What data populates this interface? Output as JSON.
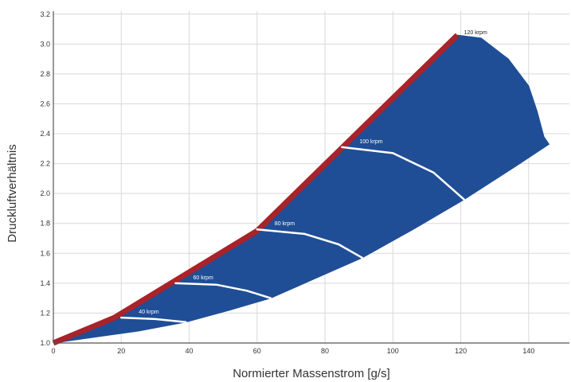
{
  "chart_data": {
    "type": "area",
    "title": "",
    "xlabel": "Normierter Massenstrom [g/s]",
    "ylabel": "Druckluftverhältnis",
    "xlim": [
      0,
      152
    ],
    "ylim": [
      1.0,
      3.22
    ],
    "x_ticks": [
      0,
      20,
      40,
      60,
      80,
      100,
      120,
      140
    ],
    "y_ticks": [
      1.0,
      1.2,
      1.4,
      1.6,
      1.8,
      2.0,
      2.2,
      2.4,
      2.6,
      2.8,
      3.0,
      3.2
    ],
    "x_tick_labels": [
      "0",
      "20",
      "40",
      "60",
      "80",
      "100",
      "120",
      "140"
    ],
    "y_tick_labels": [
      "1.0",
      "1.2",
      "1.4",
      "1.6",
      "1.8",
      "2.0",
      "2.2",
      "2.4",
      "2.6",
      "2.8",
      "3.0",
      "3.2"
    ],
    "grid": true,
    "map_region": {
      "color": "#1f4e96",
      "surge_line": [
        [
          0,
          1.0
        ],
        [
          18,
          1.17
        ],
        [
          60,
          1.75
        ],
        [
          119,
          3.06
        ]
      ],
      "choke_side": [
        [
          119,
          3.06
        ],
        [
          126,
          3.04
        ],
        [
          134,
          2.9
        ],
        [
          140,
          2.72
        ],
        [
          142.5,
          2.55
        ],
        [
          144.5,
          2.38
        ],
        [
          146,
          2.33
        ]
      ],
      "lower_boundary": [
        [
          146,
          2.33
        ],
        [
          136,
          2.18
        ],
        [
          121,
          1.96
        ],
        [
          106,
          1.76
        ],
        [
          91,
          1.57
        ],
        [
          76,
          1.42
        ],
        [
          64,
          1.3
        ],
        [
          52,
          1.22
        ],
        [
          39,
          1.14
        ],
        [
          25,
          1.08
        ],
        [
          0,
          1.0
        ]
      ]
    },
    "surge_line_color": "#a8232a",
    "speed_lines": [
      {
        "label": "40 krpm",
        "points": [
          [
            20,
            1.17
          ],
          [
            30,
            1.16
          ],
          [
            39,
            1.14
          ]
        ]
      },
      {
        "label": "60 krpm",
        "points": [
          [
            36,
            1.4
          ],
          [
            48,
            1.39
          ],
          [
            57,
            1.35
          ],
          [
            64,
            1.3
          ]
        ]
      },
      {
        "label": "80 krpm",
        "points": [
          [
            60,
            1.76
          ],
          [
            74,
            1.73
          ],
          [
            84,
            1.66
          ],
          [
            91,
            1.57
          ]
        ]
      },
      {
        "label": "100 krpm",
        "points": [
          [
            85,
            2.31
          ],
          [
            100,
            2.27
          ],
          [
            112,
            2.14
          ],
          [
            121,
            1.96
          ]
        ]
      }
    ],
    "top_label": "120 krpm",
    "top_label_at": [
      120,
      3.06
    ]
  }
}
